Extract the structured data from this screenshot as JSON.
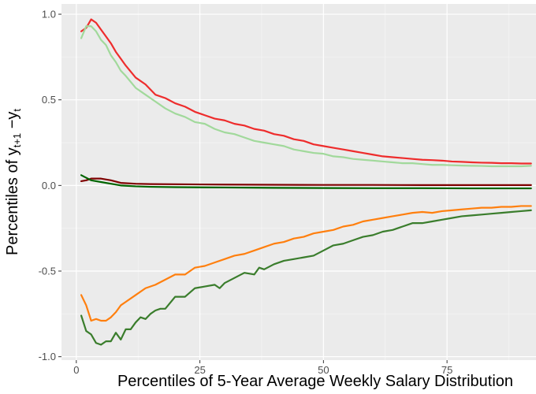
{
  "chart_data": {
    "type": "line",
    "xlabel": "Percentiles of 5-Year Average Weekly Salary Distribution",
    "ylabel": {
      "prefix": "Percentiles of ",
      "y1": "y",
      "y1_sub": "t+1",
      "minus": " −",
      "y2": "y",
      "y2_sub": "t"
    },
    "xlim": [
      -3,
      93
    ],
    "ylim": [
      -1.02,
      1.06
    ],
    "x_ticks": [
      0,
      25,
      50,
      75
    ],
    "x_tick_labels": [
      "0",
      "25",
      "50",
      "75"
    ],
    "y_ticks": [
      1.0,
      0.5,
      0.0,
      -0.5,
      -1.0
    ],
    "y_tick_labels": [
      "1.0",
      "0.5",
      "0.0",
      "-0.5",
      "-1.0"
    ],
    "grid": true,
    "legend": "none",
    "series": [
      {
        "color": "#ee2c2c",
        "x": [
          1,
          2,
          3,
          4,
          5,
          6,
          7,
          8,
          9,
          10,
          12,
          14,
          16,
          18,
          20,
          22,
          24,
          26,
          28,
          30,
          32,
          34,
          36,
          38,
          40,
          42,
          44,
          46,
          48,
          50,
          52,
          54,
          56,
          58,
          60,
          62,
          64,
          66,
          68,
          70,
          72,
          74,
          76,
          78,
          80,
          82,
          84,
          86,
          88,
          90,
          92
        ],
        "values": [
          0.9,
          0.92,
          0.97,
          0.95,
          0.91,
          0.87,
          0.83,
          0.78,
          0.74,
          0.7,
          0.63,
          0.59,
          0.53,
          0.51,
          0.48,
          0.46,
          0.43,
          0.41,
          0.39,
          0.38,
          0.36,
          0.35,
          0.33,
          0.32,
          0.3,
          0.29,
          0.27,
          0.26,
          0.24,
          0.23,
          0.22,
          0.21,
          0.2,
          0.19,
          0.18,
          0.17,
          0.165,
          0.16,
          0.155,
          0.15,
          0.148,
          0.145,
          0.14,
          0.138,
          0.135,
          0.133,
          0.132,
          0.13,
          0.13,
          0.128,
          0.128
        ]
      },
      {
        "color": "#a1d99b",
        "x": [
          1,
          2,
          3,
          4,
          5,
          6,
          7,
          8,
          9,
          10,
          12,
          14,
          16,
          18,
          20,
          22,
          24,
          26,
          28,
          30,
          32,
          34,
          36,
          38,
          40,
          42,
          44,
          46,
          48,
          50,
          52,
          54,
          56,
          58,
          60,
          62,
          64,
          66,
          68,
          70,
          72,
          74,
          76,
          78,
          80,
          82,
          84,
          86,
          88,
          90,
          92
        ],
        "values": [
          0.86,
          0.93,
          0.93,
          0.9,
          0.85,
          0.82,
          0.76,
          0.72,
          0.67,
          0.64,
          0.57,
          0.53,
          0.49,
          0.45,
          0.42,
          0.4,
          0.37,
          0.36,
          0.33,
          0.31,
          0.3,
          0.28,
          0.26,
          0.25,
          0.24,
          0.23,
          0.21,
          0.2,
          0.19,
          0.185,
          0.17,
          0.165,
          0.155,
          0.15,
          0.145,
          0.14,
          0.135,
          0.13,
          0.13,
          0.125,
          0.12,
          0.12,
          0.118,
          0.116,
          0.115,
          0.114,
          0.112,
          0.112,
          0.112,
          0.112,
          0.115
        ]
      },
      {
        "color": "#7f0000",
        "x": [
          1,
          2,
          3,
          5,
          7,
          9,
          12,
          15,
          20,
          30,
          40,
          50,
          60,
          70,
          80,
          92
        ],
        "values": [
          0.025,
          0.03,
          0.04,
          0.04,
          0.03,
          0.015,
          0.01,
          0.008,
          0.007,
          0.005,
          0.004,
          0.003,
          0.003,
          0.002,
          0.002,
          0.002
        ]
      },
      {
        "color": "#006400",
        "x": [
          1,
          2,
          3,
          5,
          7,
          9,
          12,
          15,
          20,
          30,
          40,
          50,
          60,
          70,
          80,
          92
        ],
        "values": [
          0.06,
          0.045,
          0.03,
          0.02,
          0.01,
          0.0,
          -0.005,
          -0.008,
          -0.01,
          -0.012,
          -0.014,
          -0.015,
          -0.016,
          -0.016,
          -0.017,
          -0.017
        ]
      },
      {
        "color": "#ff7f0e",
        "x": [
          1,
          2,
          3,
          4,
          5,
          6,
          7,
          8,
          9,
          10,
          12,
          14,
          16,
          18,
          20,
          22,
          24,
          26,
          28,
          30,
          32,
          34,
          36,
          38,
          40,
          42,
          44,
          46,
          48,
          50,
          52,
          54,
          56,
          58,
          60,
          62,
          64,
          66,
          68,
          70,
          72,
          74,
          76,
          78,
          80,
          82,
          84,
          86,
          88,
          90,
          92
        ],
        "values": [
          -0.64,
          -0.7,
          -0.79,
          -0.78,
          -0.79,
          -0.79,
          -0.77,
          -0.74,
          -0.7,
          -0.68,
          -0.64,
          -0.6,
          -0.58,
          -0.55,
          -0.52,
          -0.52,
          -0.48,
          -0.47,
          -0.45,
          -0.43,
          -0.41,
          -0.4,
          -0.38,
          -0.36,
          -0.34,
          -0.33,
          -0.31,
          -0.3,
          -0.28,
          -0.27,
          -0.26,
          -0.24,
          -0.23,
          -0.21,
          -0.2,
          -0.19,
          -0.18,
          -0.17,
          -0.16,
          -0.155,
          -0.16,
          -0.15,
          -0.145,
          -0.14,
          -0.135,
          -0.13,
          -0.13,
          -0.125,
          -0.125,
          -0.12,
          -0.12
        ]
      },
      {
        "color": "#3a7d2c",
        "x": [
          1,
          2,
          3,
          4,
          5,
          6,
          7,
          8,
          9,
          10,
          11,
          12,
          13,
          14,
          15,
          16,
          17,
          18,
          20,
          22,
          24,
          26,
          28,
          29,
          30,
          32,
          34,
          36,
          37,
          38,
          40,
          42,
          44,
          46,
          48,
          50,
          52,
          54,
          56,
          58,
          60,
          62,
          64,
          66,
          68,
          70,
          72,
          74,
          76,
          78,
          80,
          82,
          84,
          86,
          88,
          90,
          92
        ],
        "values": [
          -0.76,
          -0.85,
          -0.87,
          -0.92,
          -0.93,
          -0.91,
          -0.91,
          -0.86,
          -0.9,
          -0.84,
          -0.84,
          -0.8,
          -0.77,
          -0.78,
          -0.75,
          -0.73,
          -0.72,
          -0.72,
          -0.65,
          -0.65,
          -0.6,
          -0.59,
          -0.58,
          -0.6,
          -0.57,
          -0.54,
          -0.51,
          -0.52,
          -0.48,
          -0.49,
          -0.46,
          -0.44,
          -0.43,
          -0.42,
          -0.41,
          -0.38,
          -0.35,
          -0.34,
          -0.32,
          -0.3,
          -0.29,
          -0.27,
          -0.26,
          -0.24,
          -0.22,
          -0.22,
          -0.21,
          -0.2,
          -0.19,
          -0.18,
          -0.175,
          -0.17,
          -0.165,
          -0.16,
          -0.155,
          -0.15,
          -0.145
        ]
      }
    ]
  }
}
